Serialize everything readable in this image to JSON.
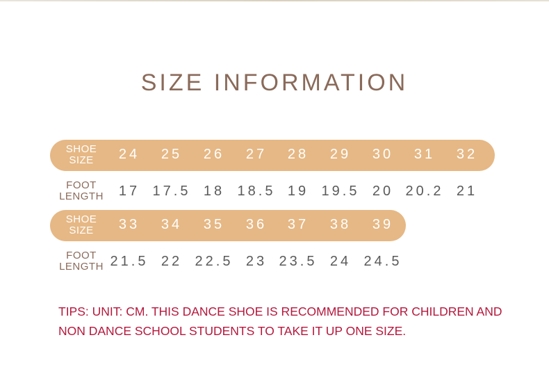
{
  "title": "SIZE INFORMATION",
  "colors": {
    "bar": "#e6b885",
    "title": "#8a6a5a",
    "tips": "#b5183c"
  },
  "rows": [
    {
      "shoe_label": [
        "SHOE",
        "SIZE"
      ],
      "foot_label": [
        "FOOT",
        "LENGTH"
      ],
      "shoe_sizes": [
        "24",
        "25",
        "26",
        "27",
        "28",
        "29",
        "30",
        "31",
        "32"
      ],
      "foot_lengths": [
        "17",
        "17.5",
        "18",
        "18.5",
        "19",
        "19.5",
        "20",
        "20.2",
        "21"
      ]
    },
    {
      "shoe_label": [
        "SHOE",
        "SIZE"
      ],
      "foot_label": [
        "FOOT",
        "LENGTH"
      ],
      "shoe_sizes": [
        "33",
        "34",
        "35",
        "36",
        "37",
        "38",
        "39"
      ],
      "foot_lengths": [
        "21.5",
        "22",
        "22.5",
        "23",
        "23.5",
        "24",
        "24.5"
      ]
    }
  ],
  "tips": "TIPS: UNIT: CM. THIS DANCE SHOE IS RECOMMENDED FOR CHILDREN AND NON DANCE SCHOOL STUDENTS TO TAKE IT UP ONE SIZE."
}
